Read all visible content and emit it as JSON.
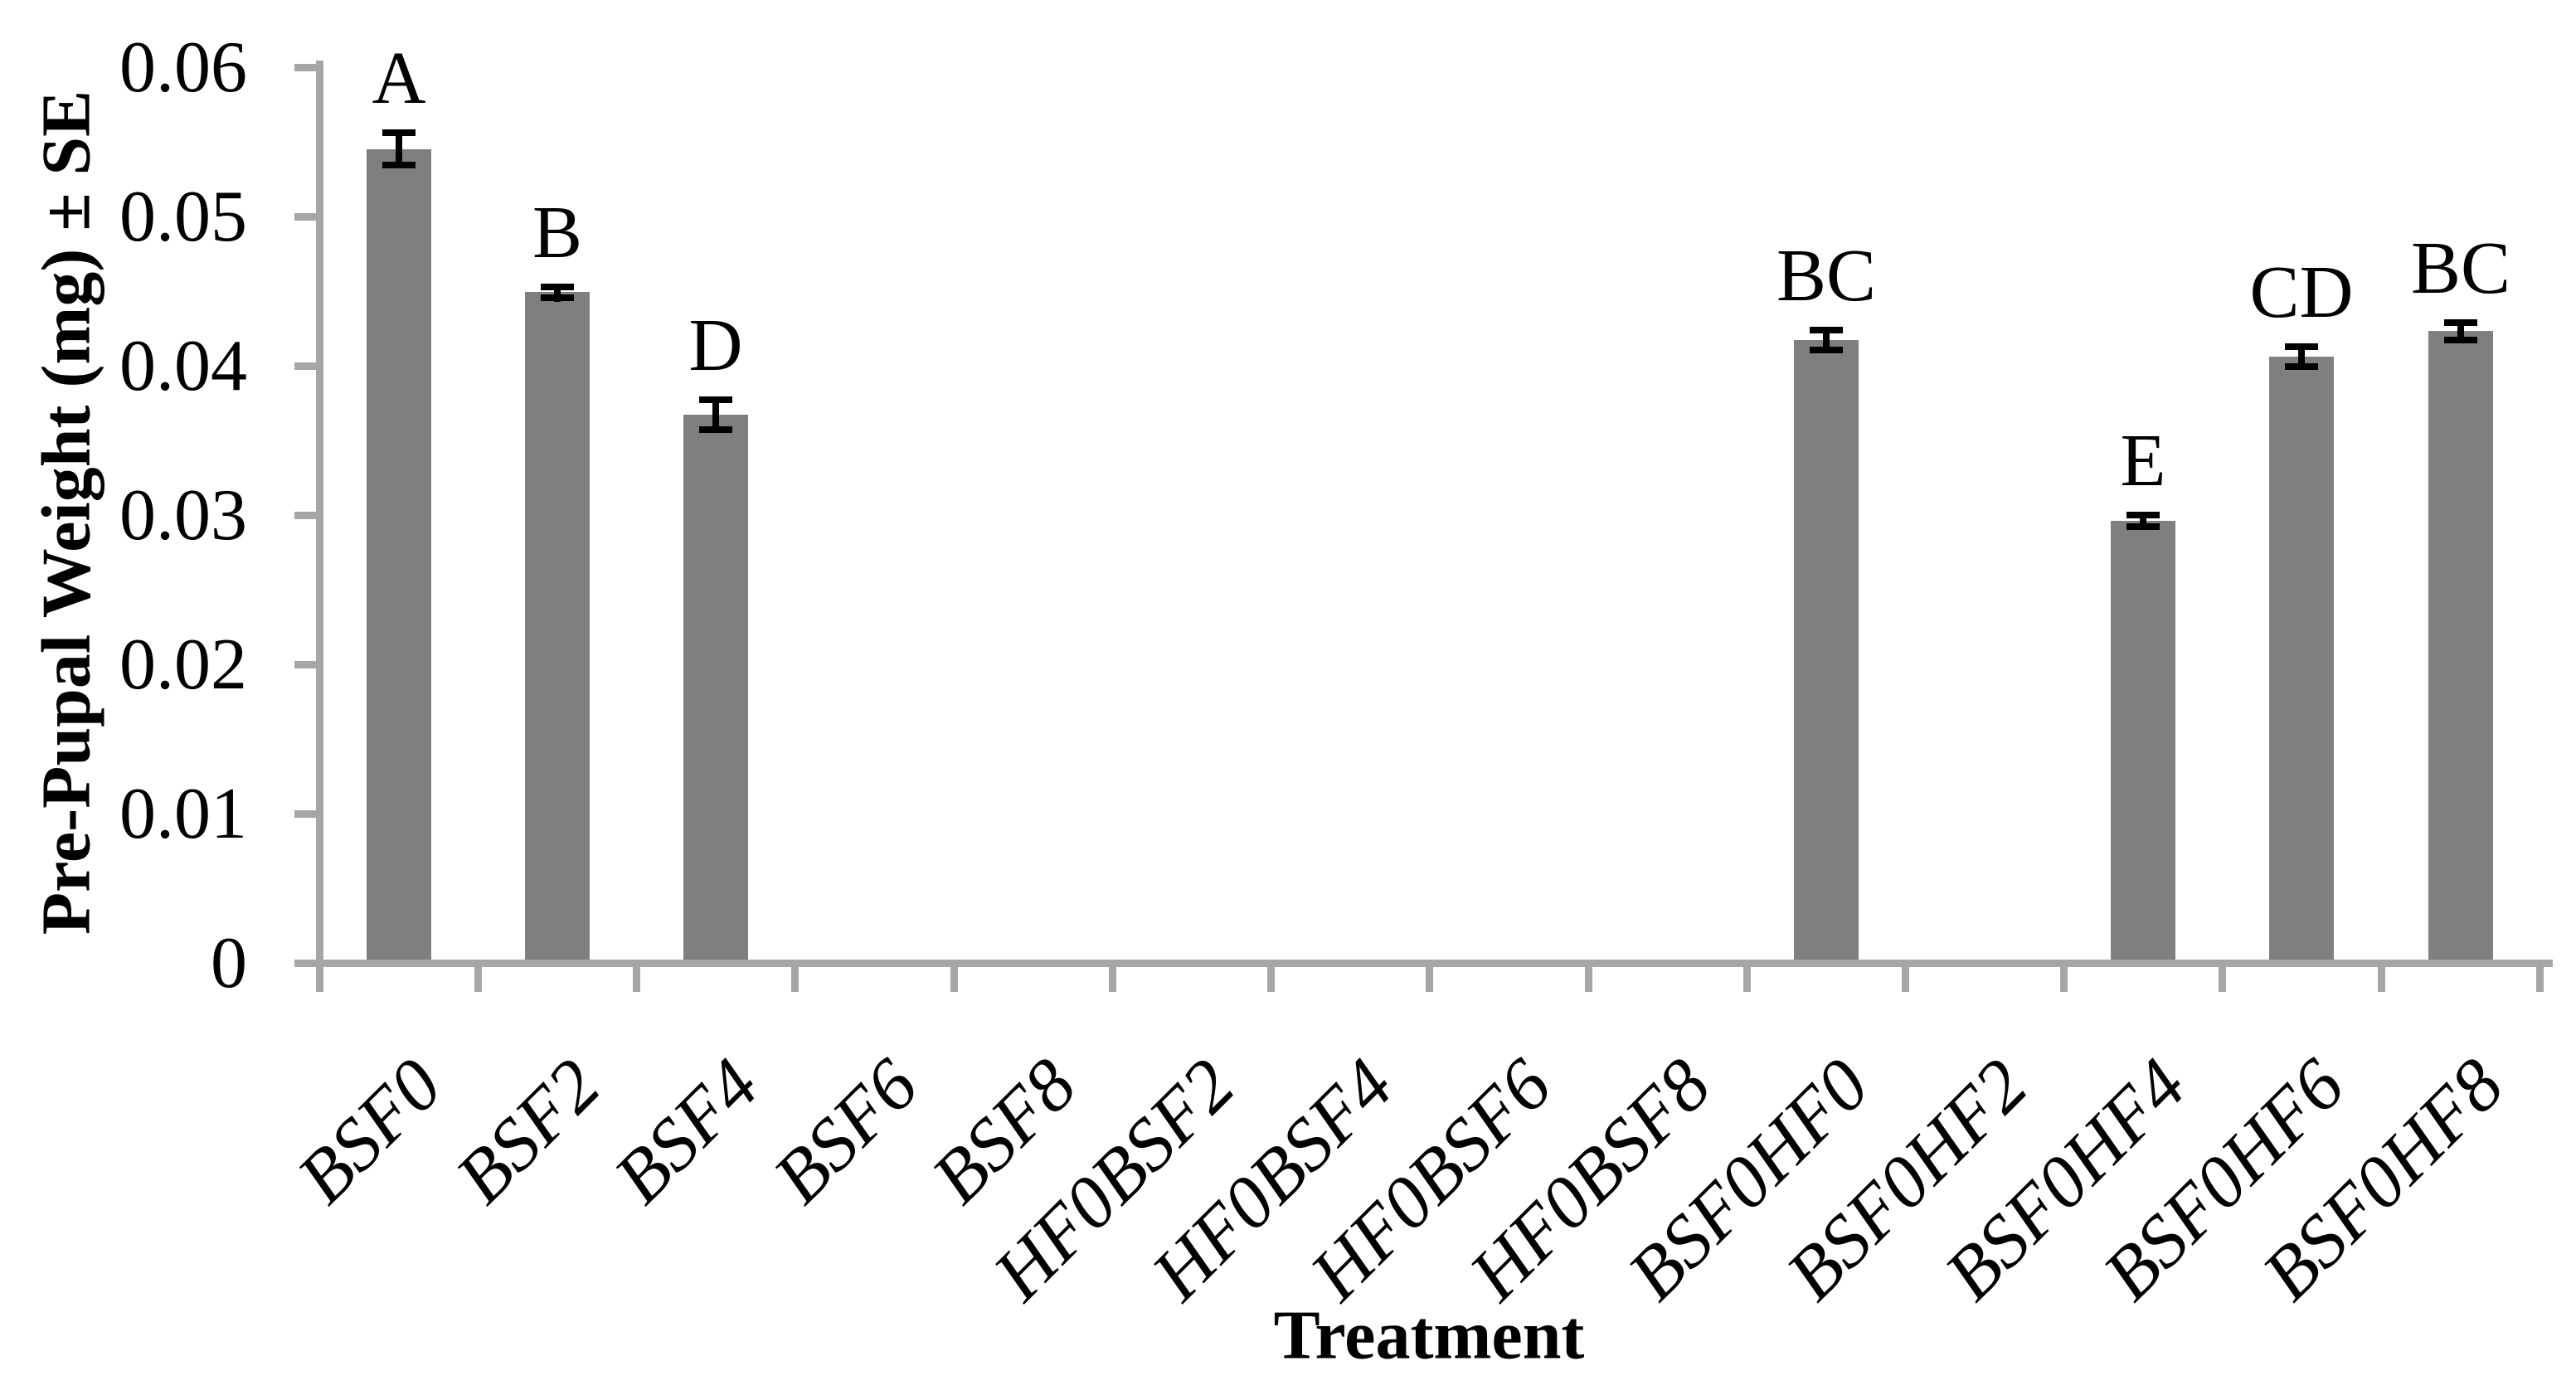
{
  "figure": {
    "background": "#ffffff"
  },
  "chart_data": {
    "type": "bar",
    "title": "",
    "xlabel": "Treatment",
    "ylabel": "Pre-Pupal Weight (mg) ± SE",
    "ylim": [
      0,
      0.06
    ],
    "ytick_step": 0.01,
    "ytick_labels": [
      "0",
      "0.01",
      "0.02",
      "0.03",
      "0.04",
      "0.05",
      "0.06"
    ],
    "grid": false,
    "legend": false,
    "categories": [
      "BSF0",
      "BSF2",
      "BSF4",
      "BSF6",
      "BSF8",
      "HF0BSF2",
      "HF0BSF4",
      "HF0BSF6",
      "HF0BSF8",
      "BSF0HF0",
      "BSF0HF2",
      "BSF0HF4",
      "BSF0HF6",
      "BSF0HF8"
    ],
    "series": [
      {
        "name": "Pre-Pupal Weight (mg)",
        "values": [
          0.0543,
          0.0447,
          0.0365,
          null,
          null,
          null,
          null,
          null,
          null,
          0.0415,
          null,
          0.0294,
          0.0404,
          0.0421
        ],
        "se": [
          0.0013,
          0.0006,
          0.0012,
          null,
          null,
          null,
          null,
          null,
          null,
          0.0009,
          null,
          0.0006,
          0.0009,
          0.0008
        ],
        "sig_letters": [
          "A",
          "B",
          "D",
          "",
          "",
          "",
          "",
          "",
          "",
          "BC",
          "",
          "E",
          "CD",
          "BC"
        ]
      }
    ],
    "colors": {
      "bar": "#7f7f7f",
      "axis": "#a6a6a6",
      "error_bar": "#000000",
      "text": "#000000"
    }
  }
}
